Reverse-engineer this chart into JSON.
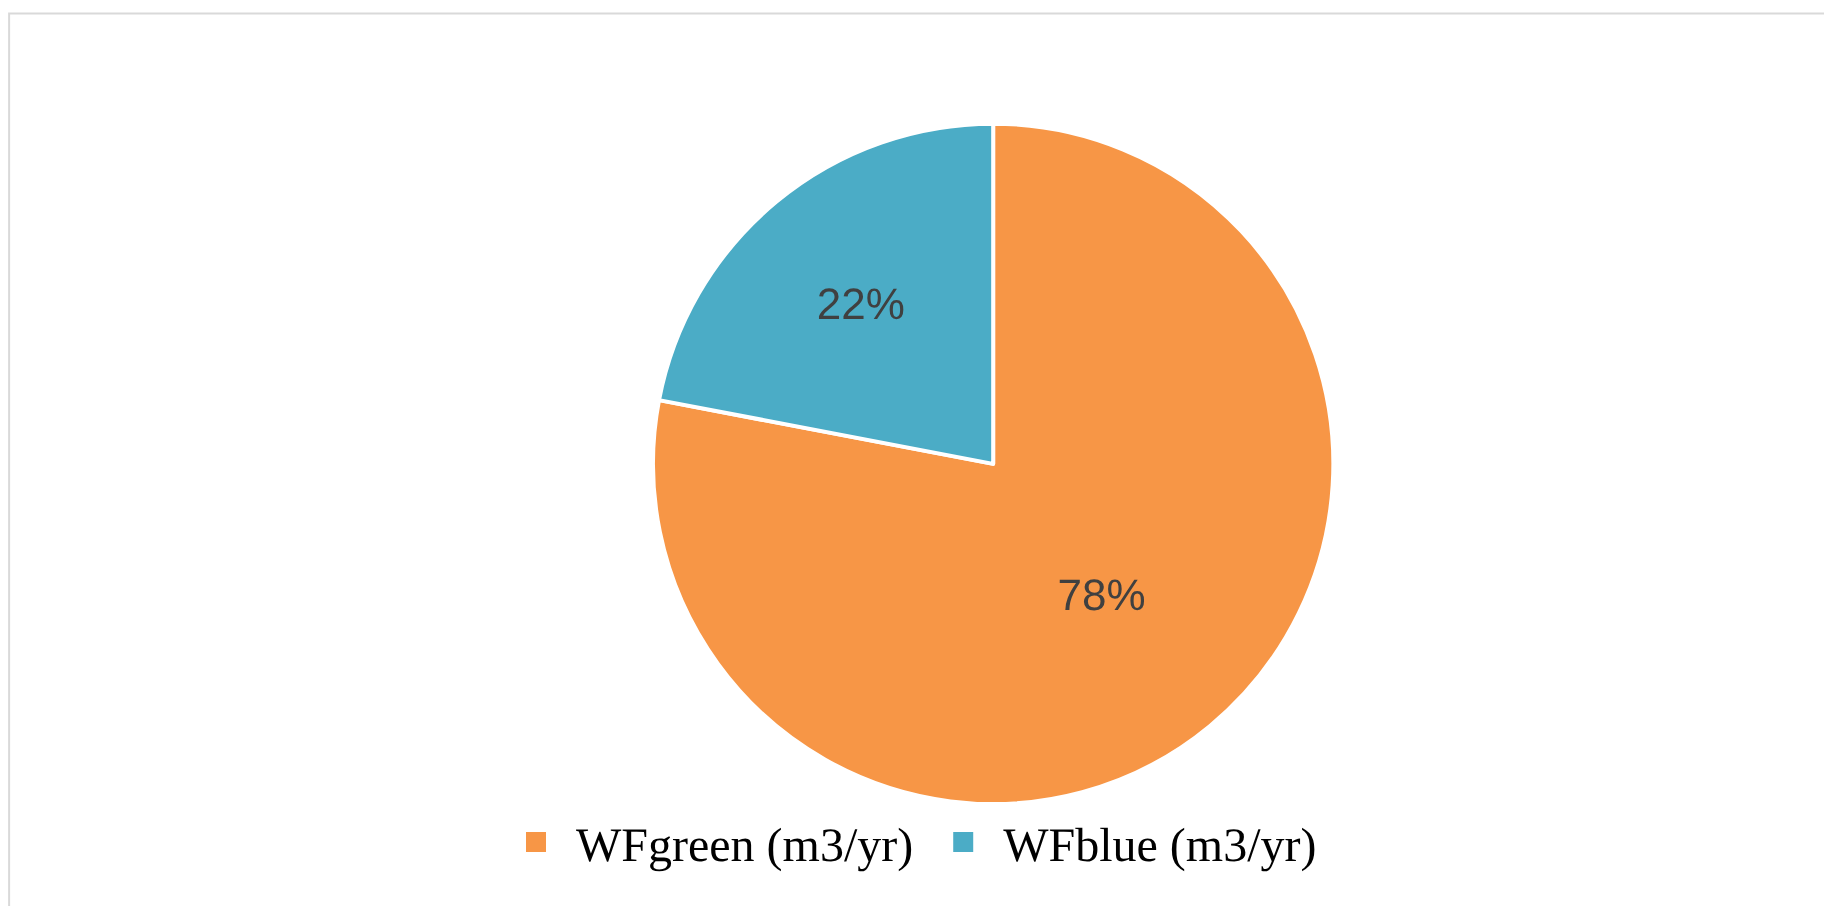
{
  "chart_data": {
    "type": "pie",
    "categories": [
      "WFgreen (m3/yr)",
      "WFblue (m3/yr)"
    ],
    "values": [
      78,
      22
    ],
    "colors": [
      "#f79646",
      "#4bacc6"
    ],
    "value_labels": [
      "78%",
      "22%"
    ],
    "legend": "bottom"
  }
}
